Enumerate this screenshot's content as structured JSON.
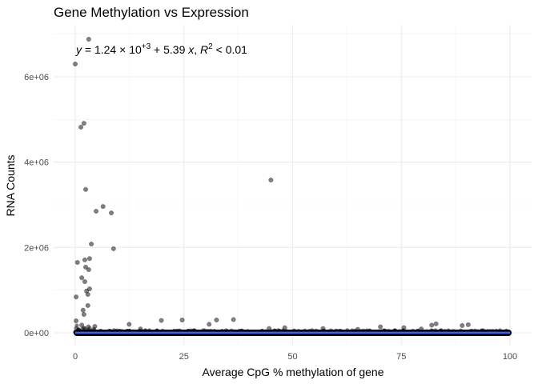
{
  "chart_data": {
    "type": "scatter",
    "title": "Gene Methylation vs Expression",
    "xlabel": "Average CpG % methylation of gene",
    "ylabel": "RNA Counts",
    "xlim": [
      -5,
      105
    ],
    "ylim": [
      -300000,
      7200000
    ],
    "x_ticks": [
      0,
      25,
      50,
      75,
      100
    ],
    "x_tick_labels": [
      "0",
      "25",
      "50",
      "75",
      "100"
    ],
    "y_ticks": [
      0,
      2000000,
      4000000,
      6000000
    ],
    "y_tick_labels": [
      "0e+00",
      "2e+06",
      "4e+06",
      "6e+06"
    ],
    "x_minor": [
      12.5,
      37.5,
      62.5,
      87.5
    ],
    "y_minor": [
      1000000,
      3000000,
      5000000,
      7000000
    ],
    "grid": true,
    "legend": "none",
    "annotation": {
      "y_var": "y",
      "intercept_mantissa": "1.24",
      "times": "×",
      "base": "10",
      "exponent": "+3",
      "slope_part": " + 5.39 ",
      "x_var": "x",
      "sep": ", ",
      "r_var": "R",
      "r_exp": "2",
      "r_part": " < 0.01"
    },
    "regression": {
      "intercept": 1240,
      "slope": 5.39,
      "x_range": [
        0,
        100
      ],
      "color": "#3366FF"
    },
    "point_color": "#000000",
    "point_alpha": 0.5,
    "outliers": [
      {
        "x": 3.1,
        "y": 6880000
      },
      {
        "x": 0.0,
        "y": 6300000
      },
      {
        "x": 2.0,
        "y": 4910000
      },
      {
        "x": 1.3,
        "y": 4820000
      },
      {
        "x": 45.0,
        "y": 3580000
      },
      {
        "x": 2.4,
        "y": 3360000
      },
      {
        "x": 6.4,
        "y": 2960000
      },
      {
        "x": 4.8,
        "y": 2850000
      },
      {
        "x": 8.3,
        "y": 2810000
      },
      {
        "x": 3.7,
        "y": 2080000
      },
      {
        "x": 8.8,
        "y": 1970000
      },
      {
        "x": 3.3,
        "y": 1740000
      },
      {
        "x": 2.2,
        "y": 1710000
      },
      {
        "x": 0.5,
        "y": 1650000
      },
      {
        "x": 2.4,
        "y": 1540000
      },
      {
        "x": 3.1,
        "y": 1480000
      },
      {
        "x": 1.5,
        "y": 1290000
      },
      {
        "x": 2.2,
        "y": 1200000
      },
      {
        "x": 3.3,
        "y": 1030000
      },
      {
        "x": 2.6,
        "y": 980000
      },
      {
        "x": 2.9,
        "y": 900000
      },
      {
        "x": 0.2,
        "y": 840000
      },
      {
        "x": 2.9,
        "y": 640000
      },
      {
        "x": 1.8,
        "y": 530000
      },
      {
        "x": 2.0,
        "y": 430000
      },
      {
        "x": 0.2,
        "y": 280000
      },
      {
        "x": 19.8,
        "y": 290000
      },
      {
        "x": 24.6,
        "y": 300000
      },
      {
        "x": 32.5,
        "y": 300000
      },
      {
        "x": 36.4,
        "y": 310000
      },
      {
        "x": 12.4,
        "y": 200000
      },
      {
        "x": 30.8,
        "y": 200000
      },
      {
        "x": 48.2,
        "y": 120000
      },
      {
        "x": 57.0,
        "y": 100000
      },
      {
        "x": 70.2,
        "y": 140000
      },
      {
        "x": 75.6,
        "y": 120000
      },
      {
        "x": 82.0,
        "y": 180000
      },
      {
        "x": 83.0,
        "y": 210000
      },
      {
        "x": 89.0,
        "y": 170000
      },
      {
        "x": 90.4,
        "y": 190000
      },
      {
        "x": 79.6,
        "y": 90000
      },
      {
        "x": 65.0,
        "y": 80000
      },
      {
        "x": 44.6,
        "y": 100000
      },
      {
        "x": 15.0,
        "y": 90000
      },
      {
        "x": 4.5,
        "y": 150000
      },
      {
        "x": 1.5,
        "y": 180000
      }
    ]
  }
}
